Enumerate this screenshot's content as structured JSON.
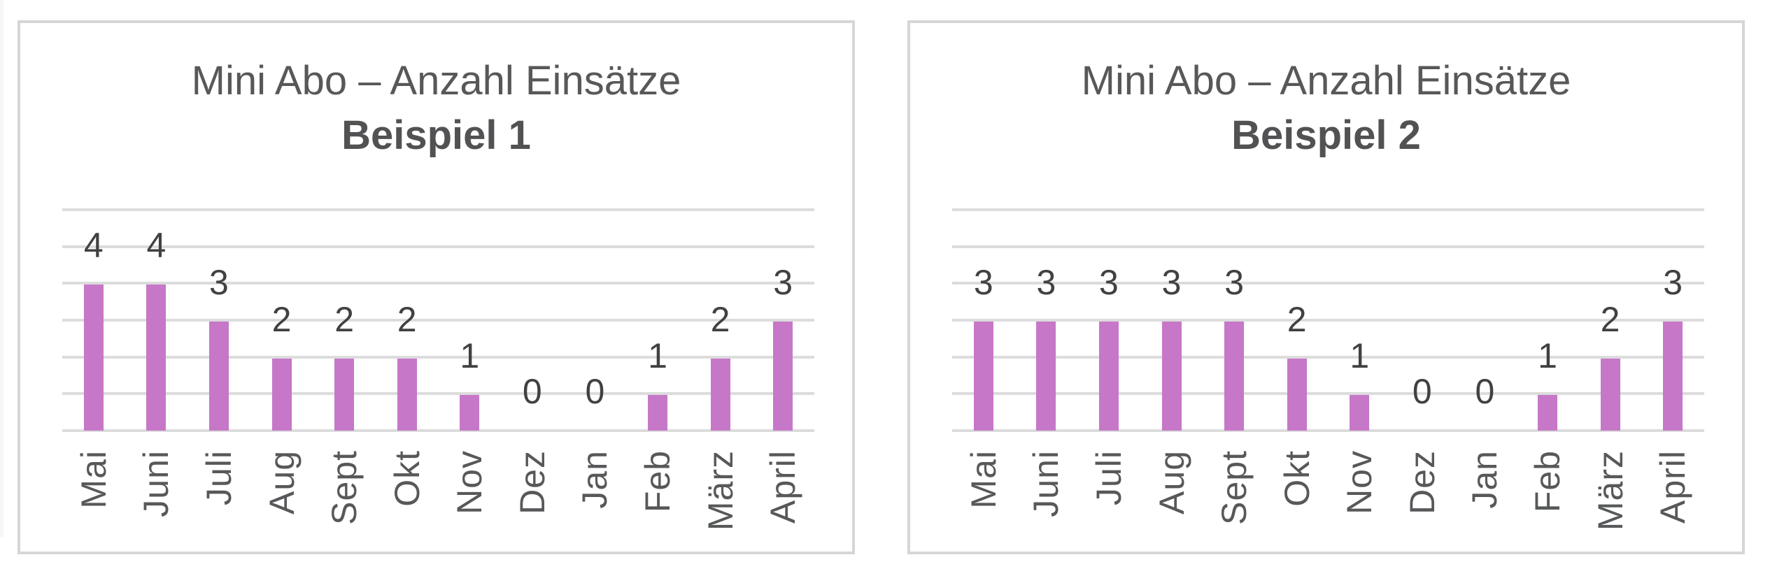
{
  "page": {
    "background": "#ffffff"
  },
  "styles": {
    "bar_color": "#c677c8",
    "gridline_color": "#dcdcdc",
    "panel_border_color": "#d6d6d6",
    "title_color": "#58585a",
    "value_label_color": "#414141",
    "month_label_color": "#57585a"
  },
  "chart_data": [
    {
      "type": "bar",
      "title": "Mini Abo – Anzahl Einsätze",
      "subtitle": "Beispiel 1",
      "categories": [
        "Mai",
        "Juni",
        "Juli",
        "Aug",
        "Sept",
        "Okt",
        "Nov",
        "Dez",
        "Jan",
        "Feb",
        "März",
        "April"
      ],
      "values": [
        4,
        4,
        3,
        2,
        2,
        2,
        1,
        0,
        0,
        1,
        2,
        3
      ],
      "xlabel": "",
      "ylabel": "",
      "ylim": [
        0,
        6
      ],
      "grid": "horizontal gridlines at every integer 0-6, no y tick labels",
      "data_labels": "value shown above each bar",
      "x_tick_rotation": -90,
      "legend": "none",
      "bar_color": "#c677c8"
    },
    {
      "type": "bar",
      "title": "Mini Abo – Anzahl Einsätze",
      "subtitle": "Beispiel 2",
      "categories": [
        "Mai",
        "Juni",
        "Juli",
        "Aug",
        "Sept",
        "Okt",
        "Nov",
        "Dez",
        "Jan",
        "Feb",
        "März",
        "April"
      ],
      "values": [
        3,
        3,
        3,
        3,
        3,
        2,
        1,
        0,
        0,
        1,
        2,
        3
      ],
      "xlabel": "",
      "ylabel": "",
      "ylim": [
        0,
        6
      ],
      "grid": "horizontal gridlines at every integer 0-6, no y tick labels",
      "data_labels": "value shown above each bar",
      "x_tick_rotation": -90,
      "legend": "none",
      "bar_color": "#c677c8"
    }
  ]
}
